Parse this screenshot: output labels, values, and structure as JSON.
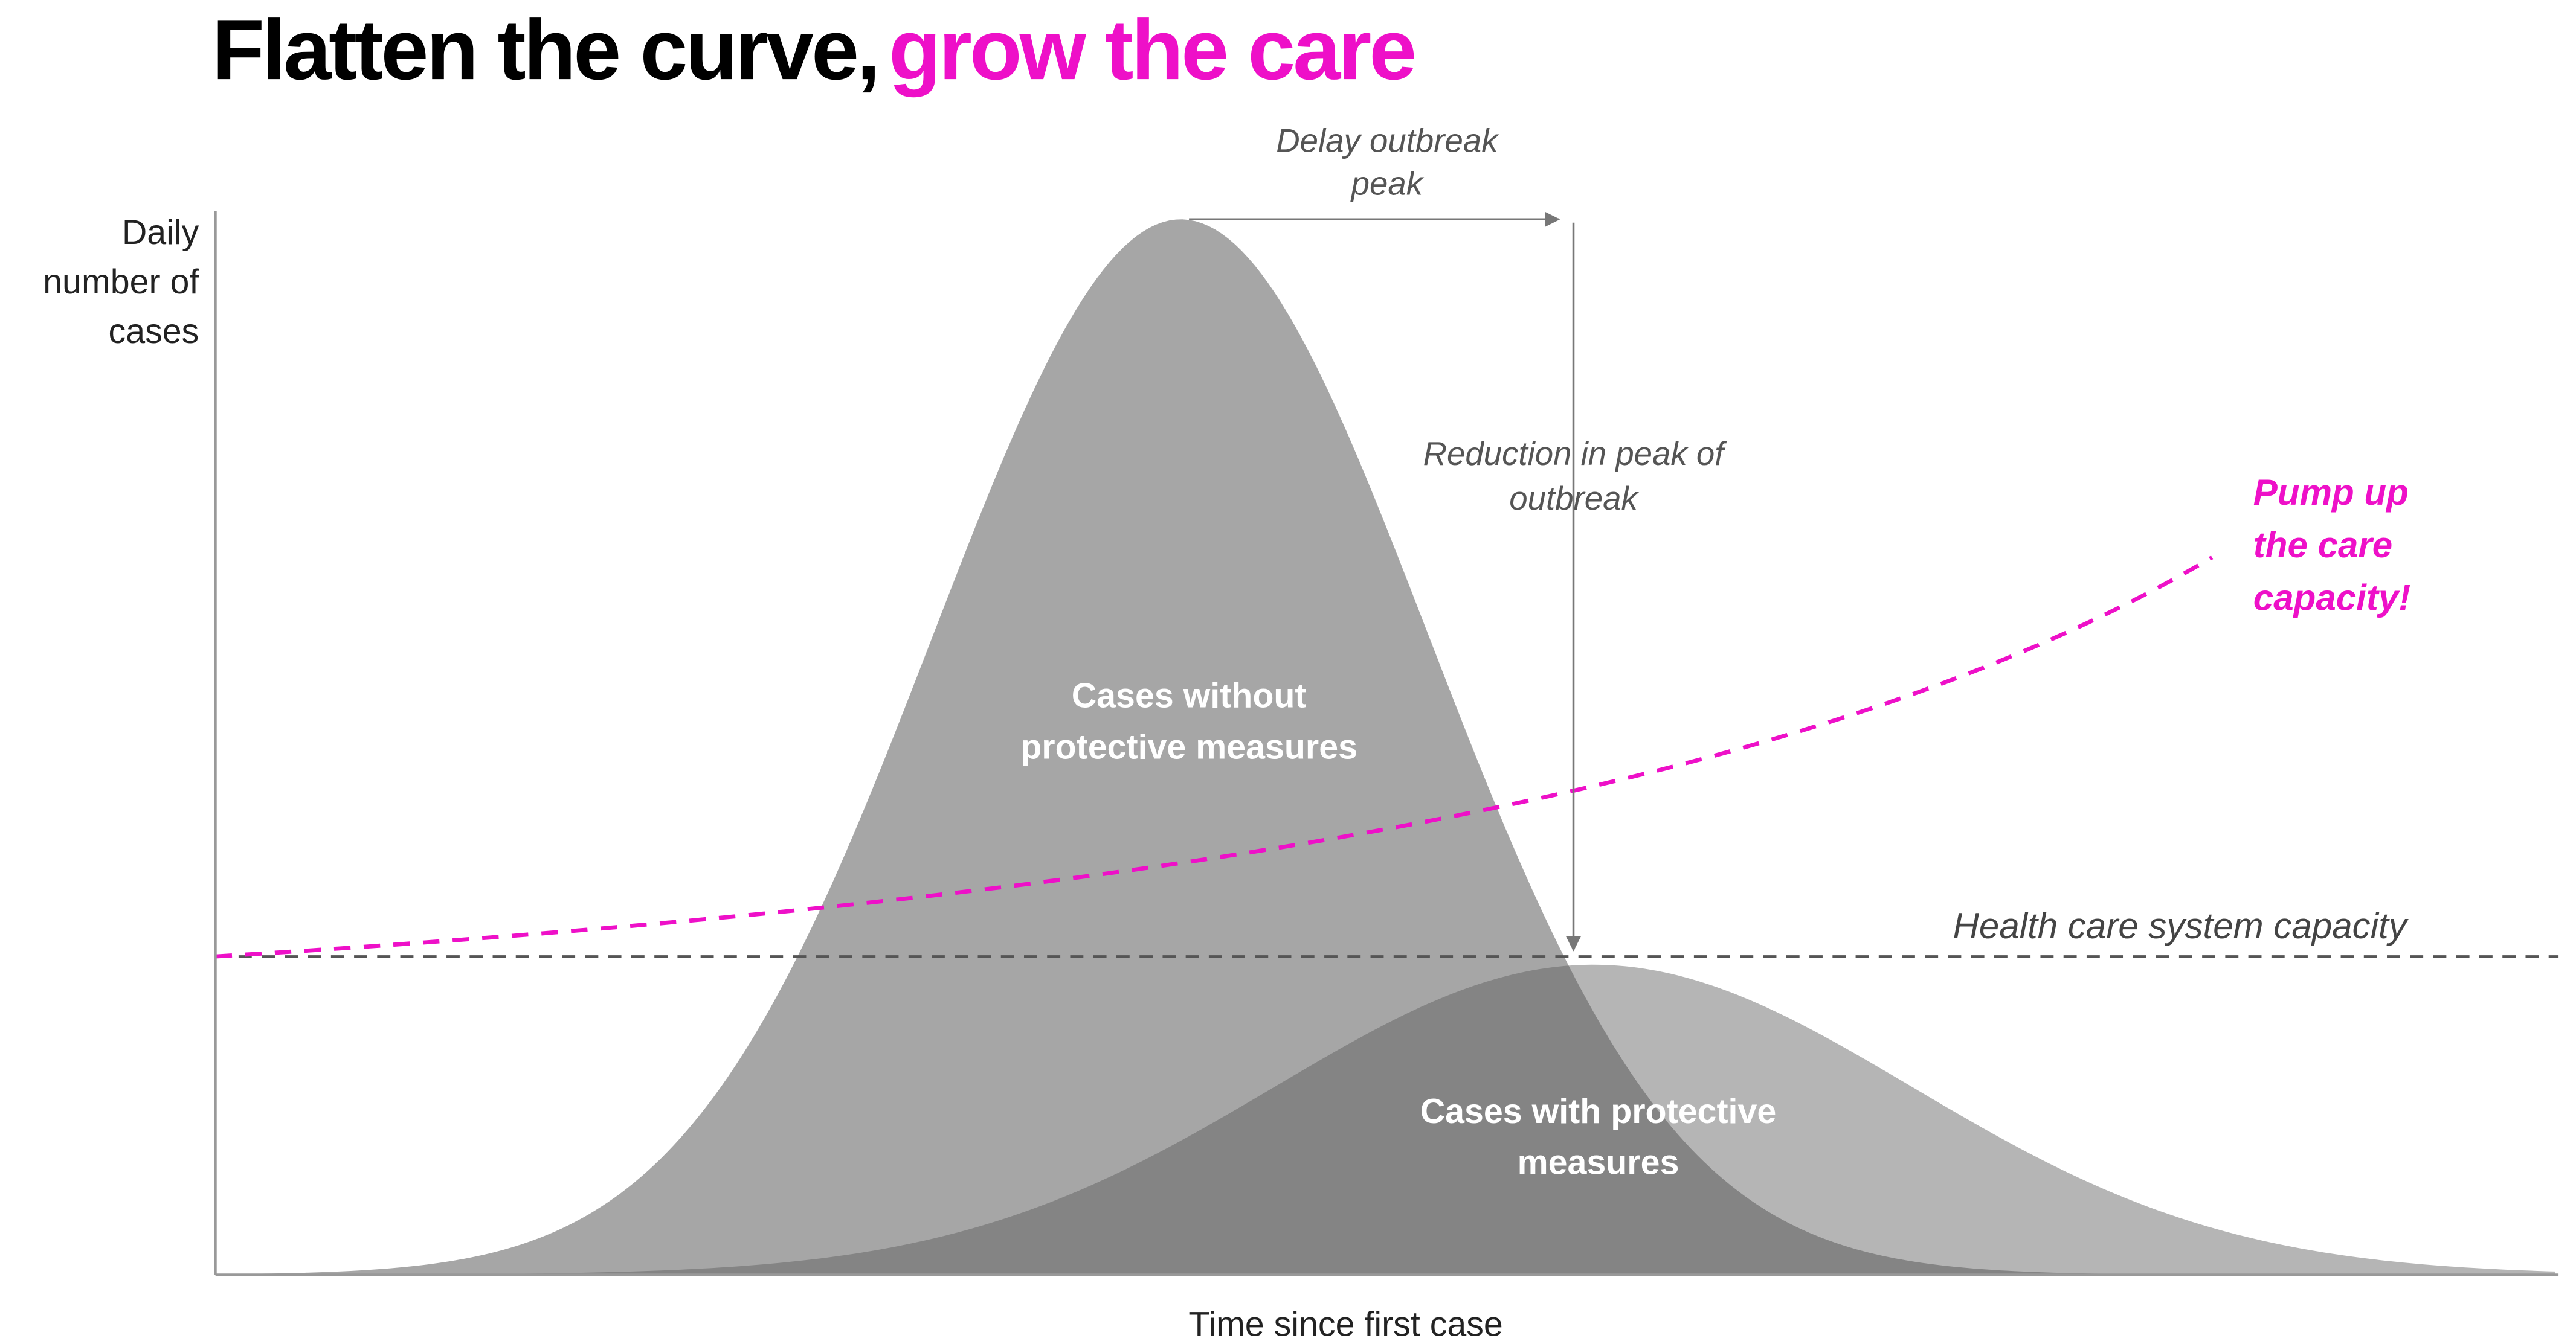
{
  "title": {
    "main": "Flatten the curve,",
    "highlight": "grow the care"
  },
  "y_axis_label": [
    "Daily",
    "number of",
    "cases"
  ],
  "x_axis_label": "Time since first case",
  "annotations": {
    "delay_peak": [
      "Delay outbreak",
      "peak"
    ],
    "reduction_peak": [
      "Reduction in peak of",
      "outbreak"
    ],
    "pump_capacity": [
      "Pump up",
      "the care",
      "capacity!"
    ],
    "capacity_line": "Health care system capacity"
  },
  "regions": {
    "without_measures": [
      "Cases without",
      "protective measures"
    ],
    "with_measures": [
      "Cases with protective",
      "measures"
    ]
  }
}
